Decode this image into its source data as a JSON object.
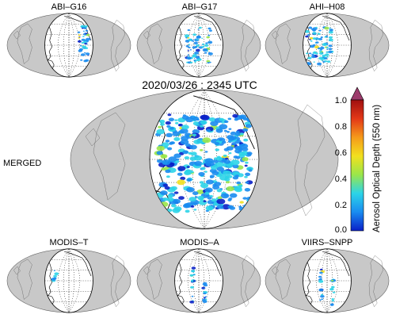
{
  "timestamp": "2020/03/26 : 2345 UTC",
  "panels": {
    "abi_g16": "ABI–G16",
    "abi_g17": "ABI–G17",
    "ahi_h08": "AHI–H08",
    "merged": "MERGED",
    "modis_t": "MODIS–T",
    "modis_a": "MODIS–A",
    "viirs_snpp": "VIIRS–SNPP"
  },
  "colorbar": {
    "label": "Aerosol Optical Depth (550 nm)",
    "ticks": [
      "0.0",
      "0.2",
      "0.4",
      "0.6",
      "0.8",
      "1.0"
    ],
    "colors": [
      "#0a20c8",
      "#1a8cf0",
      "#2cd4e8",
      "#9ae64a",
      "#f2e01e",
      "#f59a1a",
      "#e33818",
      "#a01010"
    ],
    "overflow_color": "#9c3c6c"
  },
  "colors": {
    "land": "#c8c8c8",
    "globe_face": "#ffffff",
    "coast": "#000000",
    "grid": "#000000"
  }
}
